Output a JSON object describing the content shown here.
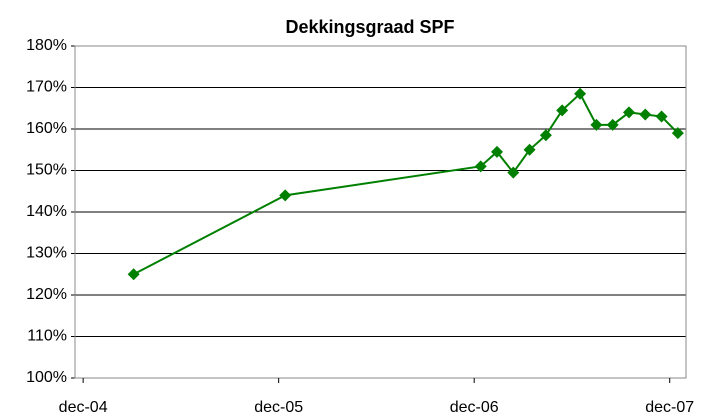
{
  "chart_data": {
    "type": "line",
    "title": "Dekkingsgraad SPF",
    "x": [
      3.1,
      12.4,
      24.4,
      25.4,
      26.4,
      27.4,
      28.4,
      29.4,
      30.5,
      31.5,
      32.5,
      33.5,
      34.5,
      35.5,
      36.5
    ],
    "series": [
      {
        "color": "#008000",
        "values": [
          125,
          144,
          151,
          154.5,
          149.5,
          155,
          158.5,
          164.5,
          168.5,
          161,
          161,
          164,
          163.5,
          163,
          159
        ]
      }
    ],
    "xlim": [
      -0.5,
      37
    ],
    "xticks": [
      {
        "value": 0,
        "label": "dec-04"
      },
      {
        "value": 12,
        "label": "dec-05"
      },
      {
        "value": 24,
        "label": "dec-06"
      },
      {
        "value": 36,
        "label": "dec-07"
      }
    ],
    "ylim": [
      100,
      180
    ],
    "yticks": [
      {
        "value": 100,
        "label": "100%"
      },
      {
        "value": 110,
        "label": "110%"
      },
      {
        "value": 120,
        "label": "120%"
      },
      {
        "value": 130,
        "label": "130%"
      },
      {
        "value": 140,
        "label": "140%"
      },
      {
        "value": 150,
        "label": "150%"
      },
      {
        "value": 160,
        "label": "160%"
      },
      {
        "value": 170,
        "label": "170%"
      },
      {
        "value": 180,
        "label": "180%"
      }
    ],
    "grid": true
  }
}
